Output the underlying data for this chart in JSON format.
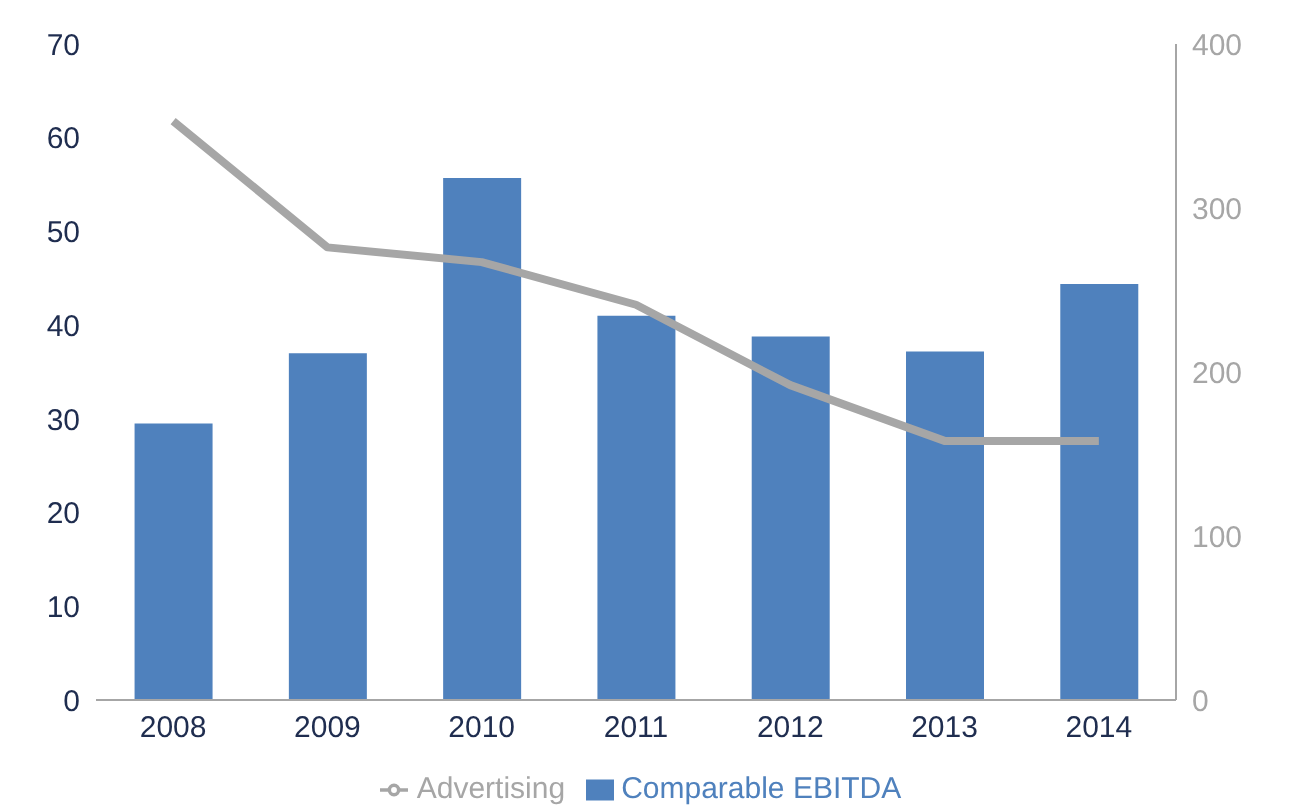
{
  "chart_data": {
    "type": "bar",
    "categories": [
      "2008",
      "2009",
      "2010",
      "2011",
      "2012",
      "2013",
      "2014"
    ],
    "series": [
      {
        "name": "Comparable EBITDA",
        "color": "#4f81bd",
        "values": [
          29.5,
          37,
          55.7,
          41,
          38.8,
          37.2,
          44.4
        ]
      },
      {
        "name": "Advertising",
        "type": "line",
        "axis": "y2",
        "color": "#a6a6a6",
        "values": [
          353,
          276,
          267,
          241,
          192,
          158,
          158
        ]
      }
    ],
    "ylim": [
      0,
      70
    ],
    "yticks": [
      0,
      10,
      20,
      30,
      40,
      50,
      60,
      70
    ],
    "y2lim": [
      0,
      400
    ],
    "y2ticks": [
      0,
      100,
      200,
      300,
      400
    ],
    "grid": false,
    "legend": "bottom",
    "marker": "none",
    "line_style": "solid"
  }
}
